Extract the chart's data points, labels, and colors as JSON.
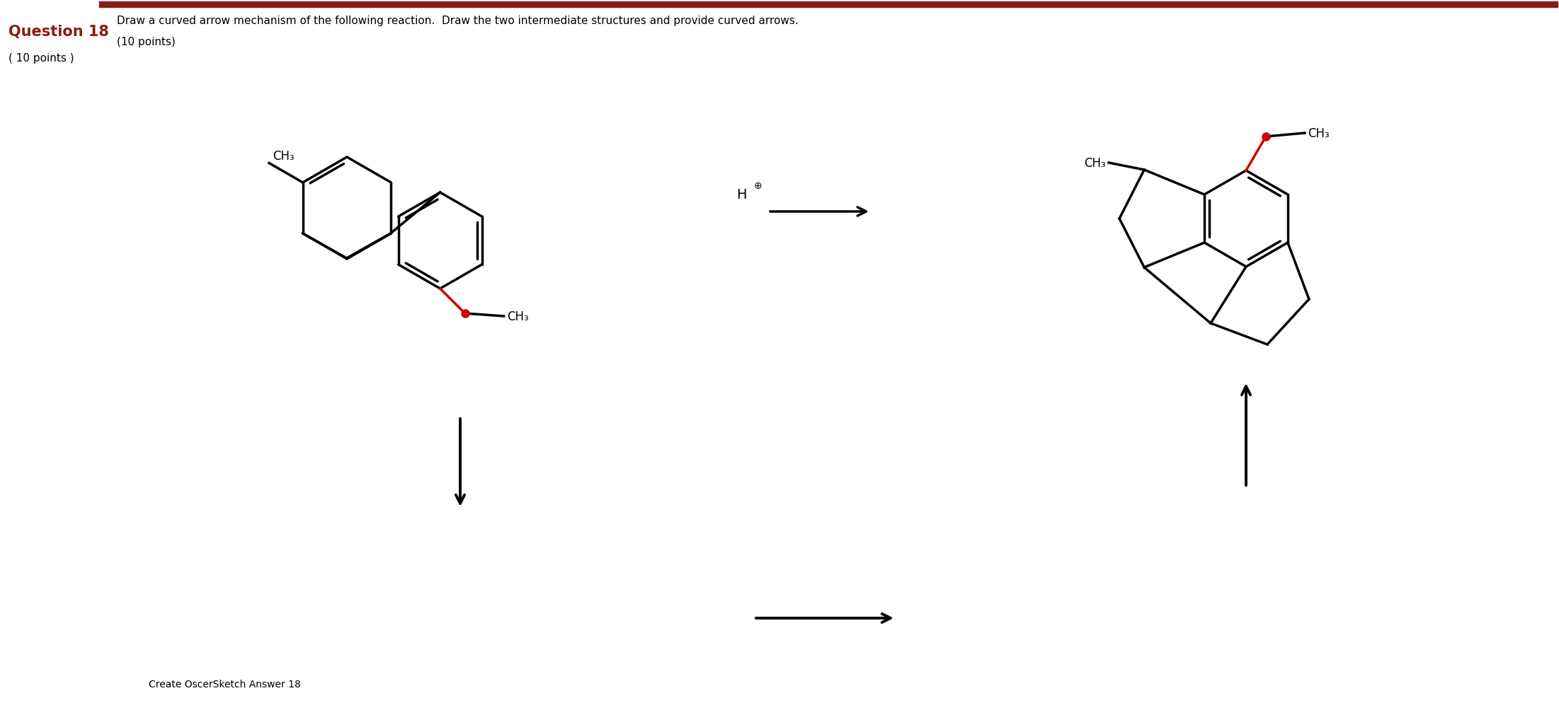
{
  "bg_color": "#ffffff",
  "title_bar_color": "#8B1A1A",
  "question_label": "Question 18",
  "question_label_color": "#8B1A1A",
  "points_side_label": "( 10 points )",
  "question_text_line1": "Draw a curved arrow mechanism of the following reaction.  Draw the two intermediate structures and provide curved arrows.",
  "question_text_line2": "(10 points)",
  "footer_text": "Create OscerSketch Answer 18",
  "red_color": "#CC0000",
  "black_color": "#000000",
  "fig_width": 22.02,
  "fig_height": 10.12,
  "dpi": 100
}
